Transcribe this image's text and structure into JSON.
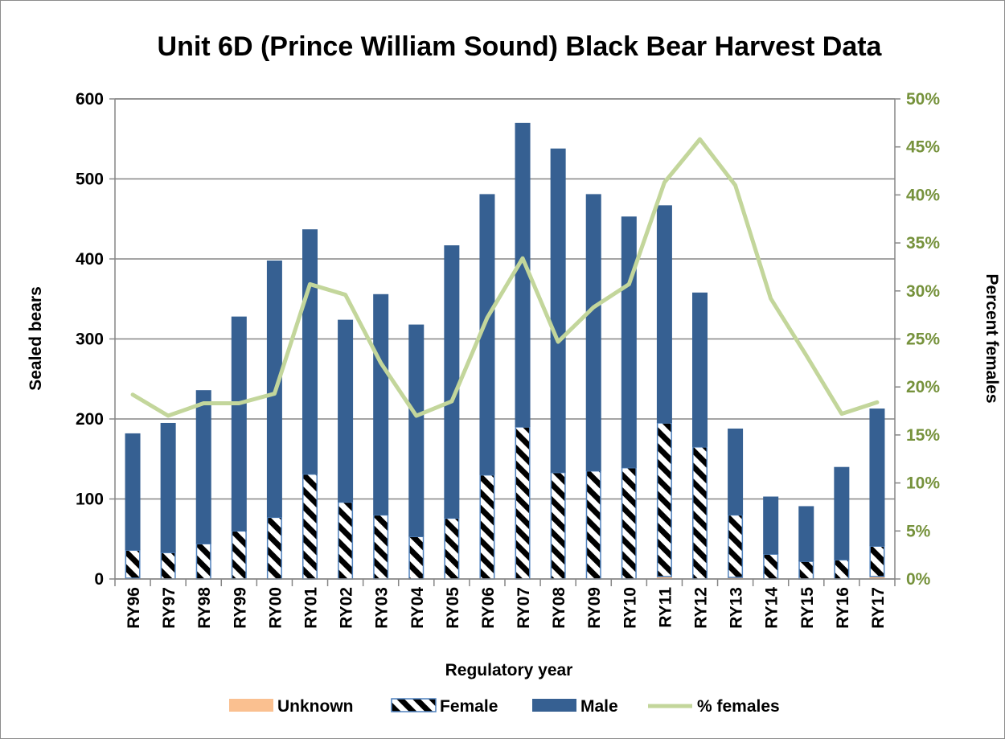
{
  "chart_data": {
    "type": "bar",
    "title": "Unit 6D (Prince William Sound) Black Bear Harvest Data",
    "xlabel": "Regulatory year",
    "ylabel": "Sealed bears",
    "y2label": "Percent females",
    "ylim": [
      0,
      600
    ],
    "yticks": [
      "0",
      "100",
      "200",
      "300",
      "400",
      "500",
      "600"
    ],
    "y2lim": [
      0,
      50
    ],
    "y2ticks": [
      "0%",
      "5%",
      "10%",
      "15%",
      "20%",
      "25%",
      "30%",
      "35%",
      "40%",
      "45%",
      "50%"
    ],
    "stacked": true,
    "grid": "horizontal",
    "legend_position": "bottom",
    "categories": [
      "RY96",
      "RY97",
      "RY98",
      "RY99",
      "RY00",
      "RY01",
      "RY02",
      "RY03",
      "RY04",
      "RY05",
      "RY06",
      "RY07",
      "RY08",
      "RY09",
      "RY10",
      "RY11",
      "RY12",
      "RY13",
      "RY14",
      "RY15",
      "RY16",
      "RY17"
    ],
    "series": [
      {
        "name": "Unknown",
        "type": "bar",
        "axis": "left",
        "color": "#fac090",
        "values": [
          1,
          0,
          0,
          0,
          0,
          0,
          0,
          0,
          0,
          0,
          0,
          0,
          0,
          0,
          0,
          3,
          0,
          2,
          0,
          0,
          0,
          3
        ]
      },
      {
        "name": "Female",
        "type": "bar",
        "axis": "left",
        "pattern": "diagonal-hatch",
        "color": "#000000",
        "border": "#4f81bd",
        "values": [
          35,
          33,
          44,
          60,
          77,
          131,
          96,
          80,
          53,
          76,
          130,
          190,
          133,
          135,
          139,
          192,
          165,
          78,
          31,
          22,
          24,
          38
        ]
      },
      {
        "name": "Male",
        "type": "bar",
        "axis": "left",
        "color": "#366092",
        "values": [
          146,
          162,
          192,
          268,
          321,
          306,
          228,
          276,
          265,
          341,
          351,
          380,
          405,
          346,
          314,
          272,
          193,
          108,
          72,
          69,
          116,
          172
        ]
      },
      {
        "name": "% females",
        "type": "line",
        "axis": "right",
        "color": "#c3d69b",
        "values": [
          19.2,
          17.0,
          18.3,
          18.3,
          19.3,
          30.7,
          29.6,
          22.5,
          17.0,
          18.5,
          27.2,
          33.4,
          24.7,
          28.3,
          30.7,
          41.3,
          45.8,
          41.0,
          29.2,
          23.3,
          17.2,
          18.4
        ]
      }
    ]
  }
}
